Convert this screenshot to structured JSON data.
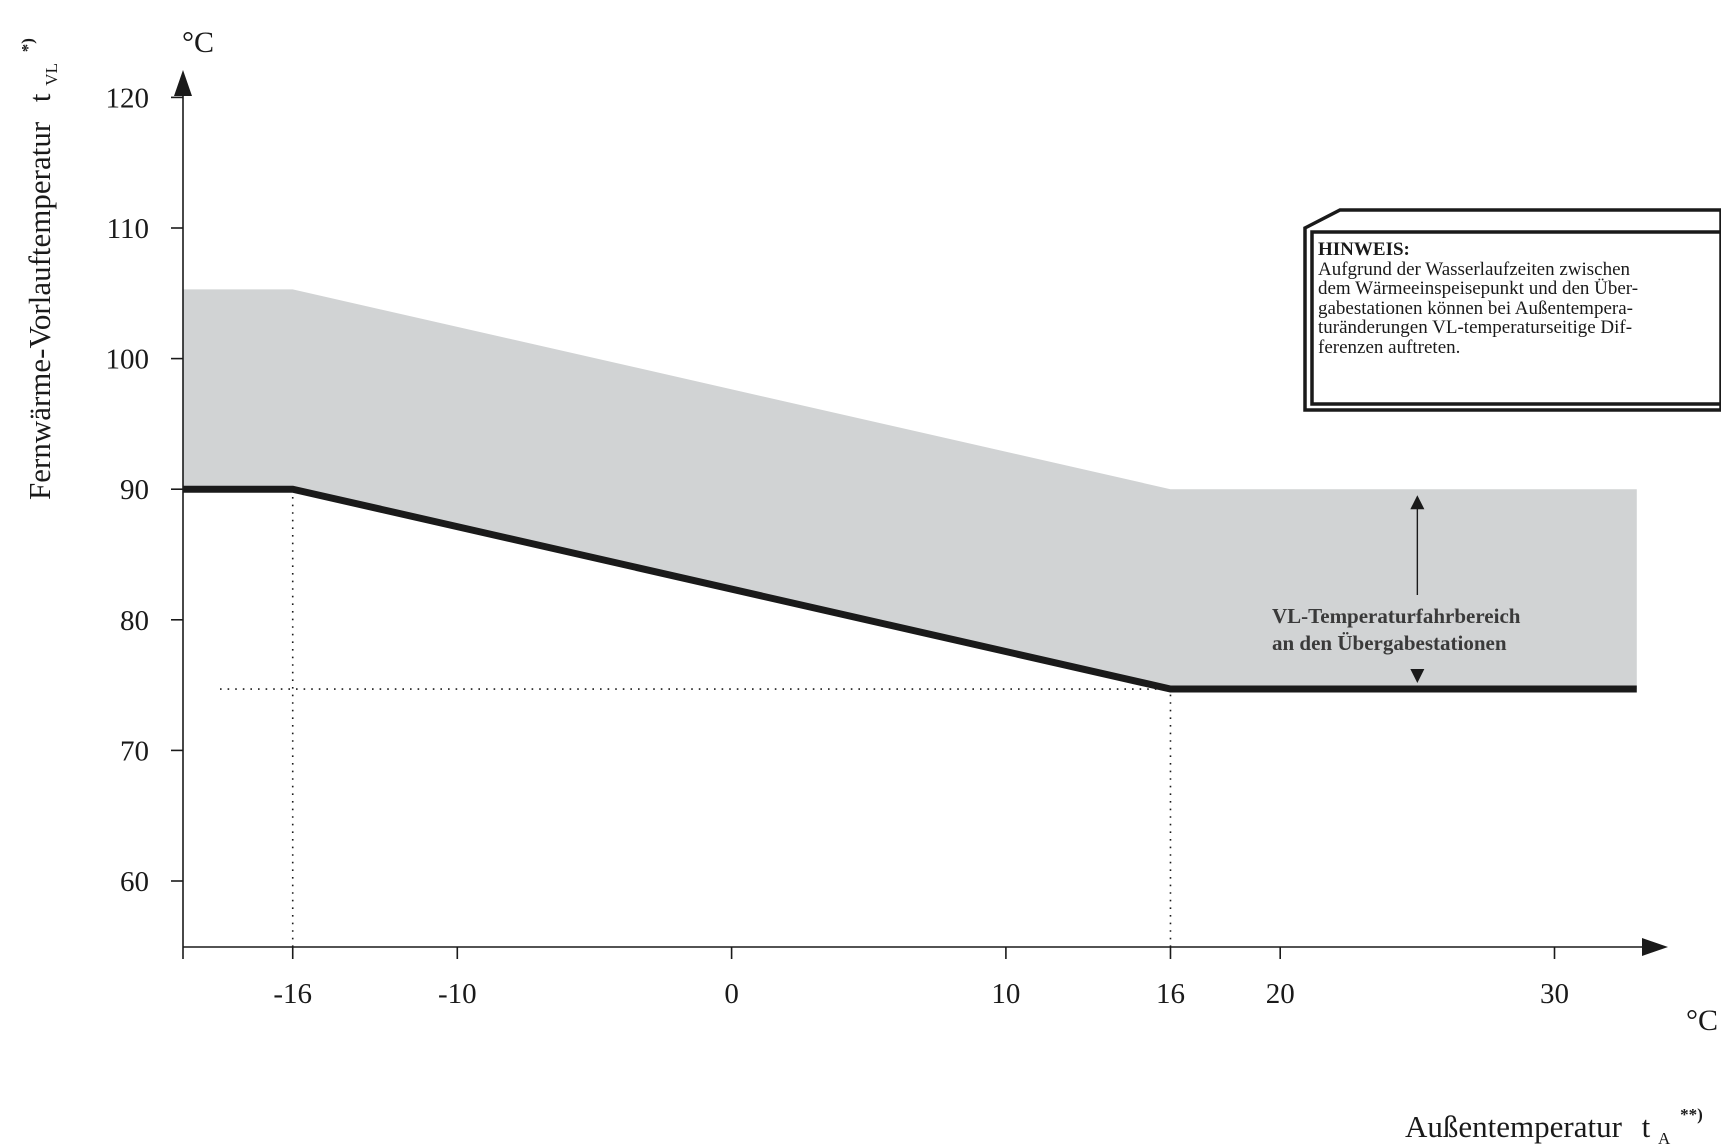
{
  "chart_data": {
    "type": "area",
    "y_axis": {
      "title": "Fernwärme-Vorlauftemperatur",
      "symbol": "t",
      "symbol_sub": "VL",
      "symbol_sup": "*)",
      "unit": "°C",
      "ticks": [
        60,
        70,
        80,
        90,
        100,
        110,
        120
      ],
      "tick_labels": [
        "60",
        "70",
        "80",
        "90",
        "100",
        "110",
        "120"
      ],
      "range": [
        55,
        122
      ]
    },
    "x_axis": {
      "title": "Außentemperatur",
      "symbol": "t",
      "symbol_sub": "A",
      "symbol_sup": "**)",
      "unit": "°C",
      "ticks": [
        -16,
        -10,
        0,
        10,
        16,
        20,
        30
      ],
      "tick_labels": [
        "-16",
        "-10",
        "0",
        "10",
        "16",
        "20",
        "30"
      ],
      "range": [
        -20,
        34
      ]
    },
    "series": [
      {
        "role": "band",
        "lower": {
          "x": [
            -20,
            -16,
            16,
            33
          ],
          "y": [
            90,
            90,
            74.7,
            74.7
          ]
        },
        "upper": {
          "x": [
            -20,
            -16,
            16,
            33
          ],
          "y": [
            105.3,
            105.3,
            90,
            90
          ]
        },
        "color": "#d1d3d4"
      },
      {
        "role": "minimum-line",
        "x": [
          -20,
          -16,
          16,
          33
        ],
        "y": [
          90,
          90,
          74.7,
          74.7
        ],
        "color": "#1a1a1a"
      }
    ],
    "reference_lines": [
      {
        "orientation": "vertical",
        "x": -16,
        "y_from": 55,
        "y_to": 90
      },
      {
        "orientation": "vertical",
        "x": 16,
        "y_from": 55,
        "y_to": 74.7
      },
      {
        "orientation": "horizontal",
        "y": 74.7,
        "x_from": -20,
        "x_to": 16
      }
    ],
    "annotations": {
      "band_label_line1": "VL-Temperaturfahrbereich",
      "band_label_line2": "an den Übergabestationen",
      "range_arrow": {
        "x": 25,
        "y_from": 90,
        "y_to": 74.7
      }
    },
    "grid": false
  },
  "note": {
    "title": "HINWEIS:",
    "lines": [
      "Aufgrund der Wasserlaufzeiten zwischen",
      "dem Wärmeeinspeisepunkt und den Über-",
      "gabestationen können bei Außentempera-",
      "turänderungen VL-temperaturseitige Dif-",
      "ferenzen auftreten."
    ]
  },
  "colors": {
    "band": "#d1d3d4",
    "line": "#1a1a1a",
    "axis": "#1a1a1a"
  }
}
